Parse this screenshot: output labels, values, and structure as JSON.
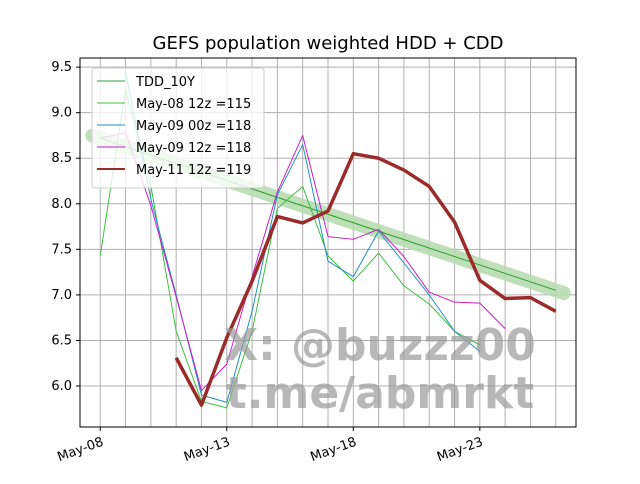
{
  "chart_data": {
    "type": "line",
    "title": "GEFS population weighted HDD + CDD",
    "xlabel": "",
    "ylabel": "",
    "x_start": "2024-05-08",
    "xlim_days": [
      -0.8,
      18.8
    ],
    "ylim": [
      5.55,
      9.6
    ],
    "yticks": [
      6.0,
      6.5,
      7.0,
      7.5,
      8.0,
      8.5,
      9.0,
      9.5
    ],
    "ytick_labels": [
      "6.0",
      "6.5",
      "7.0",
      "7.5",
      "8.0",
      "8.5",
      "9.0",
      "9.5"
    ],
    "xticks_days": [
      0,
      5,
      10,
      15
    ],
    "xtick_labels": [
      "May-08",
      "May-13",
      "May-18",
      "May-23"
    ],
    "grid": true,
    "legend_position": "upper-left",
    "trend": {
      "name": "TDD_10Y",
      "color": "#2ca02c",
      "band_color": "#b7dcb0",
      "x_days": [
        0,
        18
      ],
      "values": [
        8.72,
        7.05
      ]
    },
    "series": [
      {
        "name": "May-08 12z =115",
        "color": "#3cc03c",
        "width": 1,
        "x_days": [
          0,
          1,
          2,
          3,
          4,
          5,
          6,
          7,
          8,
          9,
          10,
          11,
          12,
          13,
          14,
          15
        ],
        "values": [
          7.43,
          9.25,
          8.2,
          6.6,
          5.83,
          5.76,
          6.6,
          7.95,
          8.19,
          7.43,
          7.15,
          7.46,
          7.1,
          6.9,
          6.6,
          6.45
        ]
      },
      {
        "name": "May-09 00z =118",
        "color": "#1f8fc8",
        "width": 1,
        "x_days": [
          1,
          2,
          3,
          4,
          5,
          6,
          7,
          8,
          9,
          10,
          11,
          12,
          13,
          14,
          15
        ],
        "values": [
          9.45,
          8.05,
          7.0,
          5.9,
          5.82,
          6.82,
          8.1,
          8.65,
          7.37,
          7.2,
          7.7,
          7.35,
          7.0,
          6.6,
          6.38
        ]
      },
      {
        "name": "May-09 12z =118",
        "color": "#c81ec8",
        "width": 1,
        "x_days": [
          0,
          1,
          2,
          3,
          4,
          5,
          6,
          7,
          8,
          9,
          10,
          11,
          12,
          13,
          14,
          15,
          16
        ],
        "values": [
          8.72,
          8.78,
          7.98,
          6.98,
          5.95,
          6.24,
          7.2,
          8.13,
          8.75,
          7.64,
          7.61,
          7.72,
          7.42,
          7.03,
          6.92,
          6.91,
          6.63
        ]
      },
      {
        "name": "May-11 12z =119",
        "color": "#9b2a2a",
        "width": 3.5,
        "x_days": [
          3,
          4,
          5,
          6,
          7,
          8,
          9,
          10,
          11,
          12,
          13,
          14,
          15,
          16,
          17,
          18
        ],
        "values": [
          6.31,
          5.79,
          6.53,
          7.15,
          7.86,
          7.79,
          7.92,
          8.55,
          8.5,
          8.37,
          8.19,
          7.8,
          7.16,
          6.96,
          6.97,
          6.82
        ]
      }
    ],
    "watermark_lines": [
      "X: @buzzz00",
      "t.me/abmrkt"
    ]
  }
}
